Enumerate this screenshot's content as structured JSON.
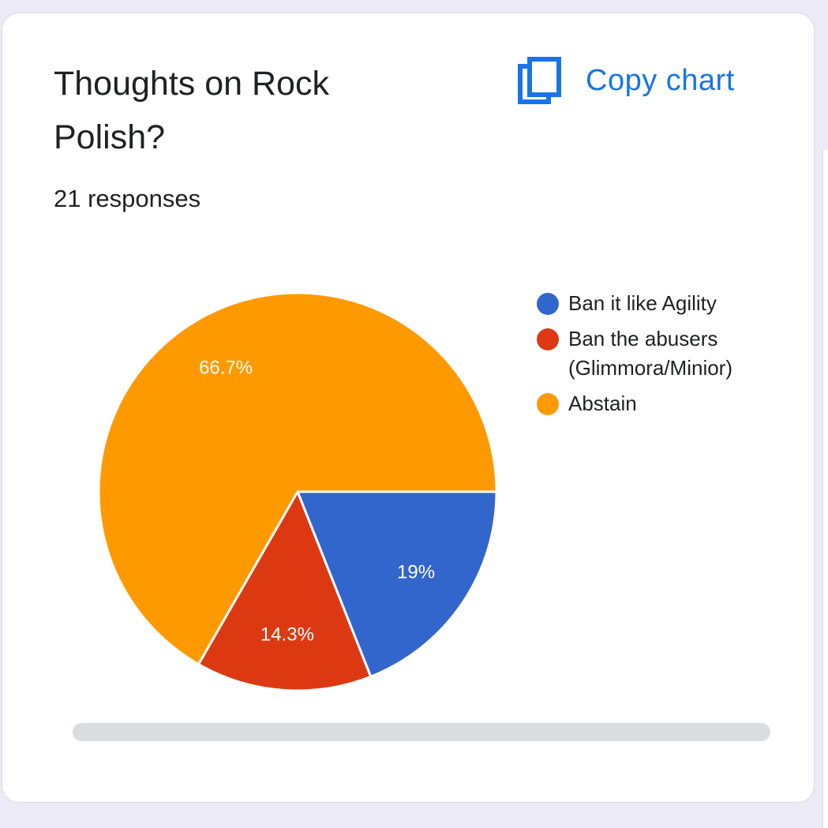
{
  "card": {
    "title": "Thoughts on Rock Polish?",
    "responses": "21 responses",
    "copy_label": "Copy chart",
    "copy_icon": "copy-icon"
  },
  "colors": {
    "accent": "#1A73E8",
    "background": "#EDEAF7"
  },
  "chart_data": {
    "type": "pie",
    "title": "Thoughts on Rock Polish?",
    "subtitle": "21 responses",
    "slices": [
      {
        "label": "Ban it like Agility",
        "value": 19,
        "display": "19%",
        "color": "#3366CC"
      },
      {
        "label": "Ban the abusers (Glimmora/Minior)",
        "value": 14.3,
        "display": "14.3%",
        "color": "#DC3912"
      },
      {
        "label": "Abstain",
        "value": 66.7,
        "display": "66.7%",
        "color": "#FF9900"
      }
    ],
    "start_angle_deg": 0,
    "direction": "clockwise",
    "legend_position": "right"
  }
}
